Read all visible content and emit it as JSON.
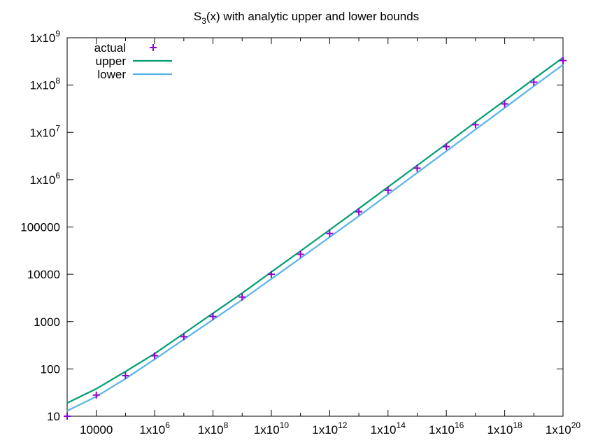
{
  "chart_data": {
    "type": "line",
    "title": {
      "base": "S",
      "subscript": "3",
      "rest": "(x) with analytic upper and lower bounds"
    },
    "xlabel": "",
    "ylabel": "",
    "x_scale": "log",
    "y_scale": "log",
    "xlim": [
      1000,
      1e+20
    ],
    "ylim": [
      10,
      1000000000.0
    ],
    "grid": false,
    "legend_position": "top-left",
    "x_ticks": [
      {
        "value": 10000,
        "label": "10000"
      },
      {
        "value": 1000000.0,
        "base": "1x10",
        "exp": "6"
      },
      {
        "value": 100000000.0,
        "base": "1x10",
        "exp": "8"
      },
      {
        "value": 10000000000.0,
        "base": "1x10",
        "exp": "10"
      },
      {
        "value": 1000000000000.0,
        "base": "1x10",
        "exp": "12"
      },
      {
        "value": 100000000000000.0,
        "base": "1x10",
        "exp": "14"
      },
      {
        "value": 1e+16,
        "base": "1x10",
        "exp": "16"
      },
      {
        "value": 1e+18,
        "base": "1x10",
        "exp": "18"
      },
      {
        "value": 1e+20,
        "base": "1x10",
        "exp": "20"
      }
    ],
    "y_ticks": [
      {
        "value": 10,
        "label": "10"
      },
      {
        "value": 100,
        "label": "100"
      },
      {
        "value": 1000,
        "label": "1000"
      },
      {
        "value": 10000,
        "label": "10000"
      },
      {
        "value": 100000,
        "label": "100000"
      },
      {
        "value": 1000000.0,
        "base": "1x10",
        "exp": "6"
      },
      {
        "value": 10000000.0,
        "base": "1x10",
        "exp": "7"
      },
      {
        "value": 100000000.0,
        "base": "1x10",
        "exp": "8"
      },
      {
        "value": 1000000000.0,
        "base": "1x10",
        "exp": "9"
      }
    ],
    "series": [
      {
        "name": "actual",
        "kind": "points",
        "marker": "+",
        "color": "#9400d3",
        "x": [
          1000,
          10000,
          100000,
          1000000.0,
          10000000.0,
          100000000.0,
          1000000000.0,
          10000000000.0,
          100000000000.0,
          1000000000000.0,
          10000000000000.0,
          100000000000000.0,
          1000000000000000.0,
          1e+16,
          1e+17,
          1e+18,
          1e+19,
          1e+20
        ],
        "y": [
          10,
          28,
          72,
          190,
          480,
          1280,
          3300,
          10000,
          26500,
          73000,
          210000,
          600000,
          1750000,
          5000000,
          14500000,
          40000000,
          115000000,
          330000000
        ]
      },
      {
        "name": "upper",
        "kind": "line",
        "color": "#009e73",
        "x": [
          1000,
          10000,
          100000,
          1000000.0,
          10000000.0,
          100000000.0,
          1000000000.0,
          10000000000.0,
          100000000000.0,
          1000000000000.0,
          10000000000000.0,
          100000000000000.0,
          1000000000000000.0,
          1e+16,
          1e+17,
          1e+18,
          1e+19,
          1e+20
        ],
        "y": [
          19,
          38,
          88,
          210,
          560,
          1500,
          4000,
          11200,
          31000,
          87000,
          245000,
          700000,
          2000000,
          5700000,
          16500000,
          47000000,
          135000000,
          380000000
        ]
      },
      {
        "name": "lower",
        "kind": "line",
        "color": "#56b4e9",
        "x": [
          1000,
          10000,
          100000,
          1000000.0,
          10000000.0,
          100000000.0,
          1000000000.0,
          10000000000.0,
          100000000000.0,
          1000000000000.0,
          10000000000000.0,
          100000000000000.0,
          1000000000000000.0,
          1e+16,
          1e+17,
          1e+18,
          1e+19,
          1e+20
        ],
        "y": [
          13,
          26,
          62,
          160,
          420,
          1100,
          2900,
          8000,
          22000,
          61000,
          170000,
          490000,
          1400000,
          4000000,
          11500000,
          33000000,
          95000000,
          270000000
        ]
      }
    ]
  }
}
